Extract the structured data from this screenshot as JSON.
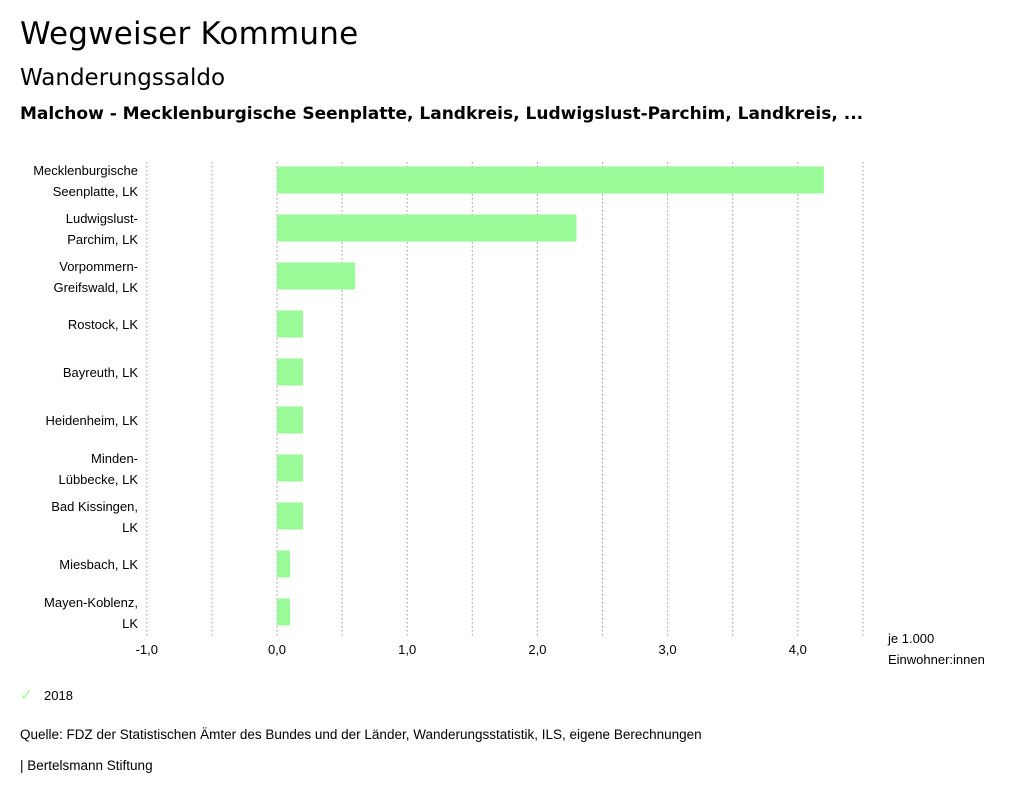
{
  "header": {
    "title": "Wegweiser Kommune",
    "subtitle": "Wanderungssaldo",
    "regions": "Malchow - Mecklenburgische Seenplatte, Landkreis, Ludwigslust-Parchim, Landkreis, ..."
  },
  "chart_data": {
    "type": "bar",
    "orientation": "horizontal",
    "categories": [
      [
        "Mecklenburgische",
        "Seenplatte, LK"
      ],
      [
        "Ludwigslust-",
        "Parchim, LK"
      ],
      [
        "Vorpommern-",
        "Greifswald, LK"
      ],
      [
        "Rostock, LK"
      ],
      [
        "Bayreuth, LK"
      ],
      [
        "Heidenheim, LK"
      ],
      [
        "Minden-",
        "Lübbecke, LK"
      ],
      [
        "Bad Kissingen,",
        "LK"
      ],
      [
        "Miesbach, LK"
      ],
      [
        "Mayen-Koblenz,",
        "LK"
      ]
    ],
    "series": [
      {
        "name": "2018",
        "color": "#98fb98",
        "values": [
          4.2,
          2.3,
          0.6,
          0.2,
          0.2,
          0.2,
          0.2,
          0.2,
          0.1,
          0.1
        ]
      }
    ],
    "xlim": [
      -1.0,
      4.5
    ],
    "xticks": [
      -1.0,
      0.0,
      1.0,
      2.0,
      3.0,
      4.0
    ],
    "xtick_labels": [
      "-1,0",
      "0,0",
      "1,0",
      "2,0",
      "3,0",
      "4,0"
    ],
    "xlabel": [
      "je 1.000",
      "Einwohner:innen"
    ],
    "grid": true,
    "legend_position": "bottom-left"
  },
  "legend": {
    "label": "2018",
    "icon": "check-icon"
  },
  "footer": {
    "source": "Quelle: FDZ der Statistischen Ämter des Bundes und der Länder, Wanderungsstatistik, ILS, eigene Berechnungen",
    "brand": "| Bertelsmann Stiftung"
  }
}
